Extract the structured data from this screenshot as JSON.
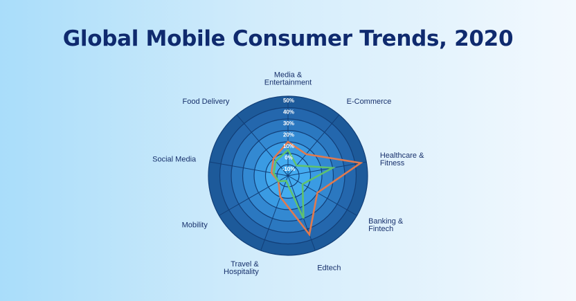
{
  "title": "Global Mobile Consumer Trends, 2020",
  "colors": {
    "title": "#0f2a6e",
    "rings": [
      "#1d5a9a",
      "#2467ad",
      "#2b78c0",
      "#3389d2",
      "#3a9be3",
      "#44acf0"
    ],
    "series": [
      "#e07a4f",
      "#5fc16e"
    ]
  },
  "chart_data": {
    "type": "radar",
    "categories": [
      [
        "Media &",
        "Entertainment"
      ],
      [
        "E-Commerce"
      ],
      [
        "Healthcare &",
        "Fitness"
      ],
      [
        "Banking &",
        "Fintech"
      ],
      [
        "Edtech"
      ],
      [
        "Travel &",
        "Hospitality"
      ],
      [
        "Mobility"
      ],
      [
        "Social Media"
      ],
      [
        "Food Delivery"
      ]
    ],
    "ticks": [
      "-10%",
      "0%",
      "10%",
      "20%",
      "30%",
      "40%",
      "50%"
    ],
    "rlim": [
      -10,
      50
    ],
    "series": [
      {
        "values": [
          10,
          5,
          45,
          10,
          35,
          0,
          -10,
          -5,
          0
        ]
      },
      {
        "values": [
          3,
          -8,
          20,
          -5,
          20,
          -15,
          -10,
          -7,
          -3
        ]
      }
    ]
  }
}
